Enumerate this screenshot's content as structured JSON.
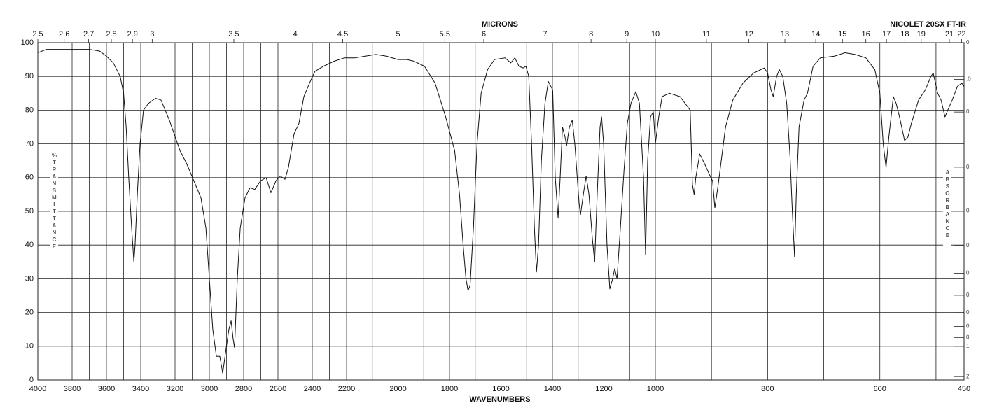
{
  "chart_data": {
    "type": "line",
    "title": "NICOLET 20SX FT-IR",
    "x_axis_label": "WAVENUMBERS",
    "top_axis_label": "MICRONS",
    "y_axis_label": "%TRANSMITTANCE",
    "y2_axis_label": "ABSORBANCE",
    "xlim": [
      4000,
      450
    ],
    "xscale_breaks": [
      2200,
      1000
    ],
    "xticks": [
      4000,
      3800,
      3600,
      3400,
      3200,
      3000,
      2800,
      2600,
      2400,
      2200,
      2000,
      1800,
      1600,
      1400,
      1200,
      1000,
      800,
      600,
      450
    ],
    "xgrid_minor": [
      3900,
      3700,
      3500,
      3300,
      3100,
      2900,
      2700,
      2500,
      2300,
      2100,
      1900,
      1700,
      1500,
      1300,
      1100,
      900,
      700,
      500
    ],
    "top_ticks": [
      2.5,
      2.6,
      2.7,
      2.8,
      2.9,
      3,
      3.5,
      4,
      4.5,
      5,
      5.5,
      6,
      7,
      8,
      9,
      10,
      11,
      12,
      13,
      14,
      15,
      16,
      17,
      18,
      19,
      21,
      22
    ],
    "ylim": [
      0,
      100
    ],
    "yticks": [
      0,
      10,
      20,
      30,
      40,
      50,
      60,
      70,
      80,
      90,
      100
    ],
    "y2ticks": [
      {
        "value": 0,
        "label": "0."
      },
      {
        "value": 0.05,
        "label": ".0"
      },
      {
        "value": 0.1,
        "label": "0."
      },
      {
        "value": 0.2,
        "label": "0."
      },
      {
        "value": 0.3,
        "label": "0."
      },
      {
        "value": 0.4,
        "label": "0."
      },
      {
        "value": 0.5,
        "label": "0."
      },
      {
        "value": 0.6,
        "label": "0."
      },
      {
        "value": 0.7,
        "label": "0."
      },
      {
        "value": 0.8,
        "label": "0."
      },
      {
        "value": 0.9,
        "label": "0."
      },
      {
        "value": 1,
        "label": "1."
      },
      {
        "value": 2,
        "label": "2."
      }
    ],
    "grid": true,
    "x": [
      4000,
      3950,
      3700,
      3640,
      3600,
      3560,
      3520,
      3500,
      3485,
      3470,
      3453,
      3440,
      3433,
      3420,
      3404,
      3384,
      3355,
      3314,
      3282,
      3233,
      3171,
      3131,
      3090,
      3049,
      3020,
      3000,
      2980,
      2959,
      2939,
      2922,
      2906,
      2886,
      2873,
      2861,
      2853,
      2837,
      2820,
      2792,
      2763,
      2735,
      2702,
      2669,
      2641,
      2612,
      2588,
      2559,
      2539,
      2506,
      2478,
      2449,
      2416,
      2384,
      2335,
      2273,
      2212,
      2167,
      2127,
      2086,
      2045,
      2000,
      1965,
      1938,
      1897,
      1856,
      1815,
      1780,
      1761,
      1747,
      1736,
      1728,
      1720,
      1707,
      1693,
      1677,
      1652,
      1625,
      1584,
      1562,
      1546,
      1530,
      1514,
      1503,
      1492,
      1481,
      1470,
      1462,
      1454,
      1443,
      1429,
      1416,
      1399,
      1389,
      1378,
      1370,
      1361,
      1351,
      1345,
      1334,
      1323,
      1313,
      1296,
      1291,
      1280,
      1269,
      1258,
      1245,
      1236,
      1226,
      1215,
      1209,
      1201,
      1188,
      1177,
      1166,
      1158,
      1149,
      1136,
      1122,
      1109,
      1095,
      1076,
      1062,
      1046,
      1038,
      1030,
      1019,
      1008,
      1000,
      994,
      988,
      975,
      956,
      938,
      934,
      931,
      928,
      921,
      912,
      904,
      898,
      894,
      888,
      875,
      862,
      844,
      825,
      806,
      800,
      794,
      790,
      784,
      779,
      773,
      766,
      760,
      756,
      752,
      749,
      744,
      735,
      729,
      719,
      706,
      681,
      662,
      644,
      625,
      609,
      600,
      594,
      589,
      584,
      576,
      571,
      565,
      556,
      550,
      544,
      531,
      519,
      509,
      505,
      497,
      491,
      484,
      479,
      471,
      462,
      454,
      450
    ],
    "series": [
      {
        "color": "#111111",
        "values": [
          97,
          98,
          98,
          97.5,
          96,
          94,
          90,
          85,
          75,
          60,
          45,
          35,
          40,
          55,
          70,
          80,
          82,
          83.5,
          83,
          77,
          68,
          64,
          59,
          54,
          45,
          30,
          15,
          7,
          7,
          2,
          8,
          15,
          17.5,
          12,
          9.5,
          30,
          45,
          54,
          57,
          56.5,
          59,
          60,
          55.5,
          59,
          60.5,
          59.5,
          63,
          73,
          76,
          84,
          88,
          91.5,
          93,
          94.5,
          95.5,
          95.5,
          96,
          96.5,
          96,
          95,
          95,
          94.5,
          93,
          88,
          78,
          68,
          55,
          40,
          30,
          26.5,
          28,
          45,
          70,
          85,
          92,
          95,
          95.5,
          94,
          95.5,
          93,
          92.5,
          93,
          90,
          70,
          45,
          32,
          40,
          65,
          82,
          88.5,
          86,
          60,
          48,
          60,
          75,
          72,
          69.5,
          75,
          77,
          70,
          52,
          49,
          55,
          60.5,
          55,
          42,
          35,
          55,
          75,
          78,
          70,
          40,
          27,
          30,
          33,
          30,
          45,
          62,
          76,
          82,
          85.5,
          82,
          60,
          37,
          65,
          78,
          79.5,
          70,
          78,
          84,
          85,
          84,
          80,
          58,
          55,
          60,
          67,
          64,
          61,
          59,
          51,
          58,
          75,
          83,
          88,
          91,
          92.5,
          91,
          86,
          84,
          90,
          92,
          90,
          82,
          66,
          50,
          36.5,
          55,
          75,
          83,
          85,
          93,
          95.5,
          96,
          97,
          96.5,
          95.5,
          92,
          85,
          70,
          63,
          72,
          84,
          82,
          78,
          71,
          72,
          76,
          83,
          86,
          90,
          91,
          85,
          83,
          78,
          80,
          83,
          87,
          88,
          87
        ]
      }
    ]
  }
}
